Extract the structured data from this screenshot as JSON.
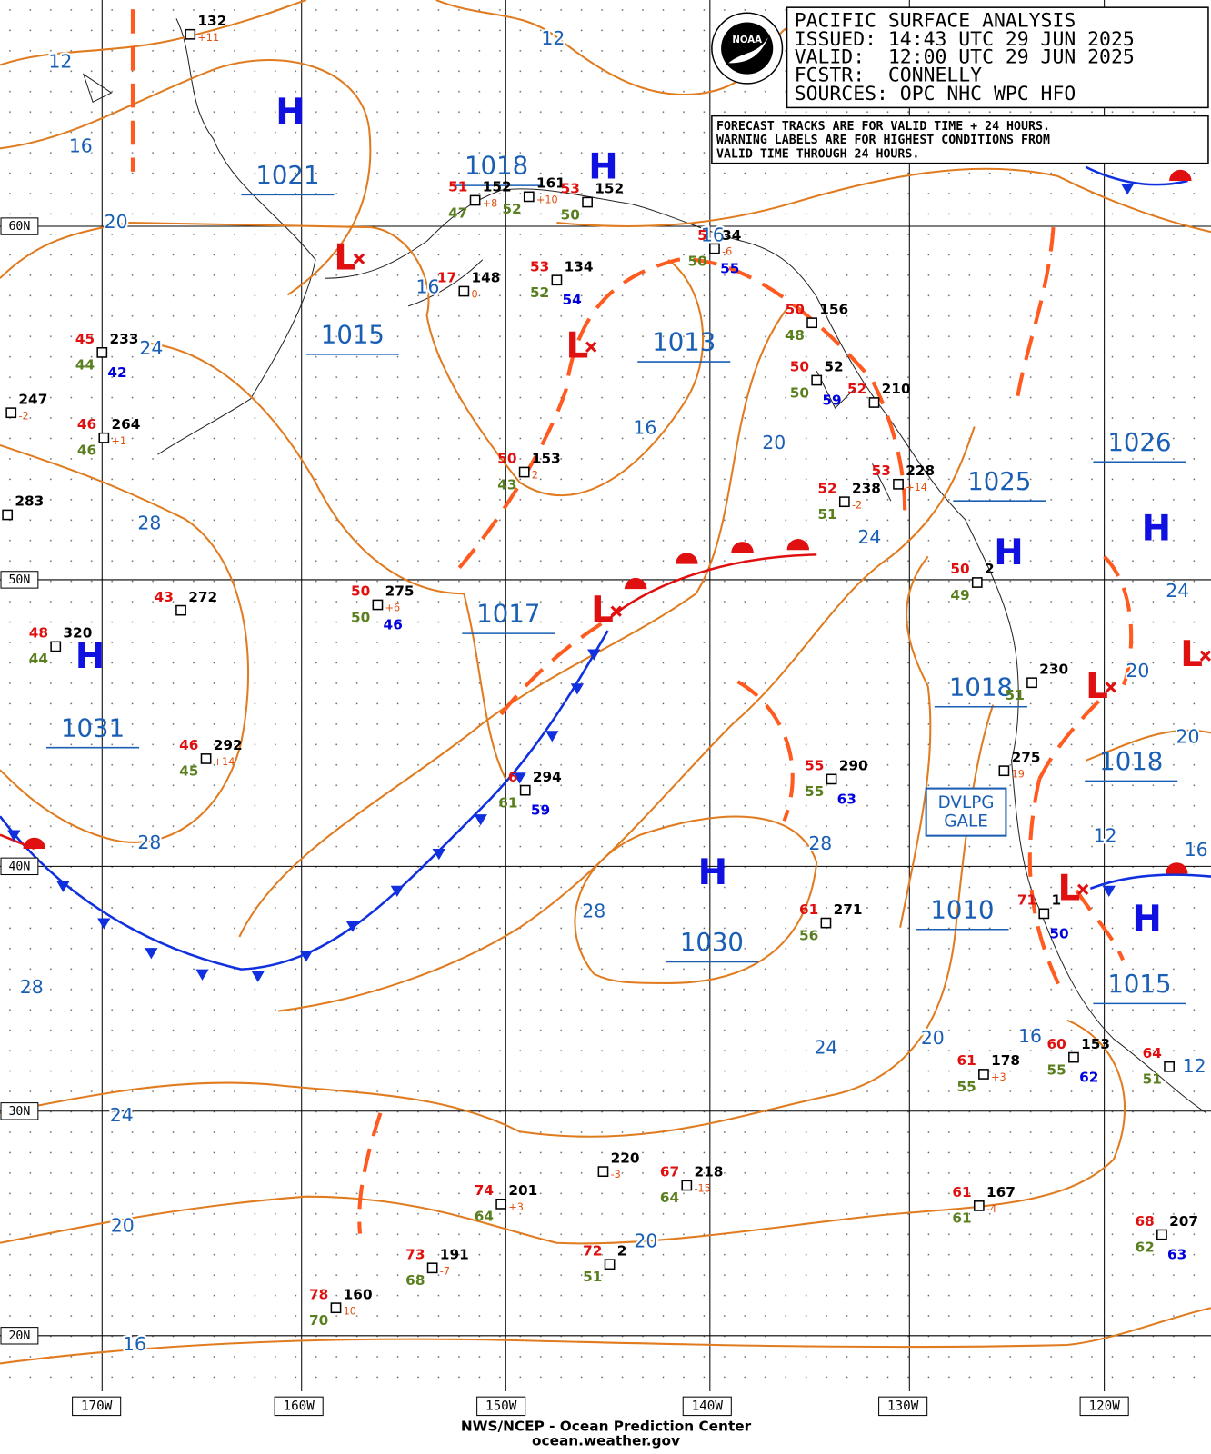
{
  "header": {
    "title": "PACIFIC SURFACE ANALYSIS",
    "issued": "ISSUED: 14:43 UTC 29 JUN 2025",
    "valid": "VALID:  12:00 UTC 29 JUN 2025",
    "forecaster": "FCSTR:  CONNELLY",
    "sources": "SOURCES: OPC NHC WPC HFO"
  },
  "notice": [
    "FORECAST TRACKS ARE FOR VALID TIME + 24 HOURS.",
    "WARNING LABELS ARE FOR HIGHEST CONDITIONS FROM",
    "VALID TIME THROUGH 24 HOURS."
  ],
  "logo": "NOAA",
  "lat_labels": [
    "60N",
    "50N",
    "40N",
    "30N",
    "20N"
  ],
  "lon_labels": [
    "170W",
    "160W",
    "150W",
    "140W",
    "130W",
    "120W"
  ],
  "centers": [
    "H",
    "H",
    "L",
    "L",
    "L",
    "H",
    "H",
    "H",
    "H",
    "L",
    "L",
    "H",
    "L"
  ],
  "pressure_labels": [
    "1021",
    "1018",
    "1015",
    "1013",
    "1017",
    "1031",
    "1030",
    "1025",
    "1026",
    "1018",
    "1018",
    "1010",
    "1015"
  ],
  "isobar_labels": [
    "12",
    "12",
    "16",
    "20",
    "24",
    "16",
    "16",
    "20",
    "16",
    "28",
    "28",
    "24",
    "28",
    "28",
    "28",
    "24",
    "20",
    "16",
    "24",
    "20",
    "20",
    "16",
    "24",
    "20",
    "20",
    "12",
    "16",
    "12"
  ],
  "warning": [
    "DVLPG",
    "GALE"
  ],
  "stations": [
    {
      "p": "132",
      "tend": "+11"
    },
    {
      "t": "45",
      "p": "233",
      "d": "44",
      "w": "42"
    },
    {
      "p": "247",
      "tend": "-2"
    },
    {
      "t": "46",
      "p": "264",
      "tend": "+1",
      "d": "46"
    },
    {
      "p": "283"
    },
    {
      "t": "43",
      "p": "272"
    },
    {
      "t": "48",
      "p": "320",
      "d": "44"
    },
    {
      "t": "46",
      "p": "292",
      "tend": "+14",
      "d": "45"
    },
    {
      "t": "50",
      "p": "275",
      "tend": "+6",
      "d": "50",
      "w": "46"
    },
    {
      "t": "51",
      "p": "152",
      "tend": "+8",
      "d": "47"
    },
    {
      "p": "161",
      "tend": "+10",
      "d": "52"
    },
    {
      "t": "53",
      "p": "152",
      "d": "50"
    },
    {
      "t": "17",
      "p": "148",
      "tend": "0"
    },
    {
      "t": "53",
      "p": "134",
      "d": "52",
      "w": "54"
    },
    {
      "t": "50",
      "p": "153",
      "tend": "2",
      "d": "43"
    },
    {
      "t": "6",
      "p": "294",
      "d": "61",
      "w": "59"
    },
    {
      "t": "50",
      "p": "156",
      "d": "48"
    },
    {
      "t": "50",
      "p": "52",
      "d": "50",
      "w": "59"
    },
    {
      "t": "52",
      "p": "210"
    },
    {
      "t": "53",
      "p": "228",
      "tend": "+14"
    },
    {
      "t": "52",
      "p": "238",
      "tend": "-2",
      "d": "51"
    },
    {
      "t": "50",
      "p": "2",
      "d": "49"
    },
    {
      "p": "230",
      "d": "51"
    },
    {
      "p": "275",
      "tend": "19"
    },
    {
      "t": "55",
      "p": "290",
      "d": "55",
      "w": "63"
    },
    {
      "t": "61",
      "p": "271",
      "d": "56"
    },
    {
      "t": "71",
      "p": "1",
      "w": "50"
    },
    {
      "t": "61",
      "p": "178",
      "tend": "+3",
      "d": "55"
    },
    {
      "t": "60",
      "p": "153",
      "d": "55",
      "w": "62"
    },
    {
      "t": "64",
      "d": "51"
    },
    {
      "p": "220",
      "tend": "-3"
    },
    {
      "t": "67",
      "p": "218",
      "tend": "-15",
      "d": "64"
    },
    {
      "t": "74",
      "p": "201",
      "tend": "+3",
      "d": "64"
    },
    {
      "t": "61",
      "p": "167",
      "tend": "-4",
      "d": "61"
    },
    {
      "t": "73",
      "p": "191",
      "tend": "-7",
      "d": "68"
    },
    {
      "t": "72",
      "p": "2",
      "d": "51"
    },
    {
      "t": "78",
      "p": "160",
      "tend": "10",
      "d": "70"
    },
    {
      "t": "68",
      "p": "207",
      "d": "62",
      "w": "63"
    },
    {
      "t": "5",
      "p": "34",
      "tend": "-6",
      "d": "50",
      "w": "55"
    }
  ],
  "footer": [
    "NWS/NCEP - Ocean Prediction Center",
    "ocean.weather.gov"
  ]
}
